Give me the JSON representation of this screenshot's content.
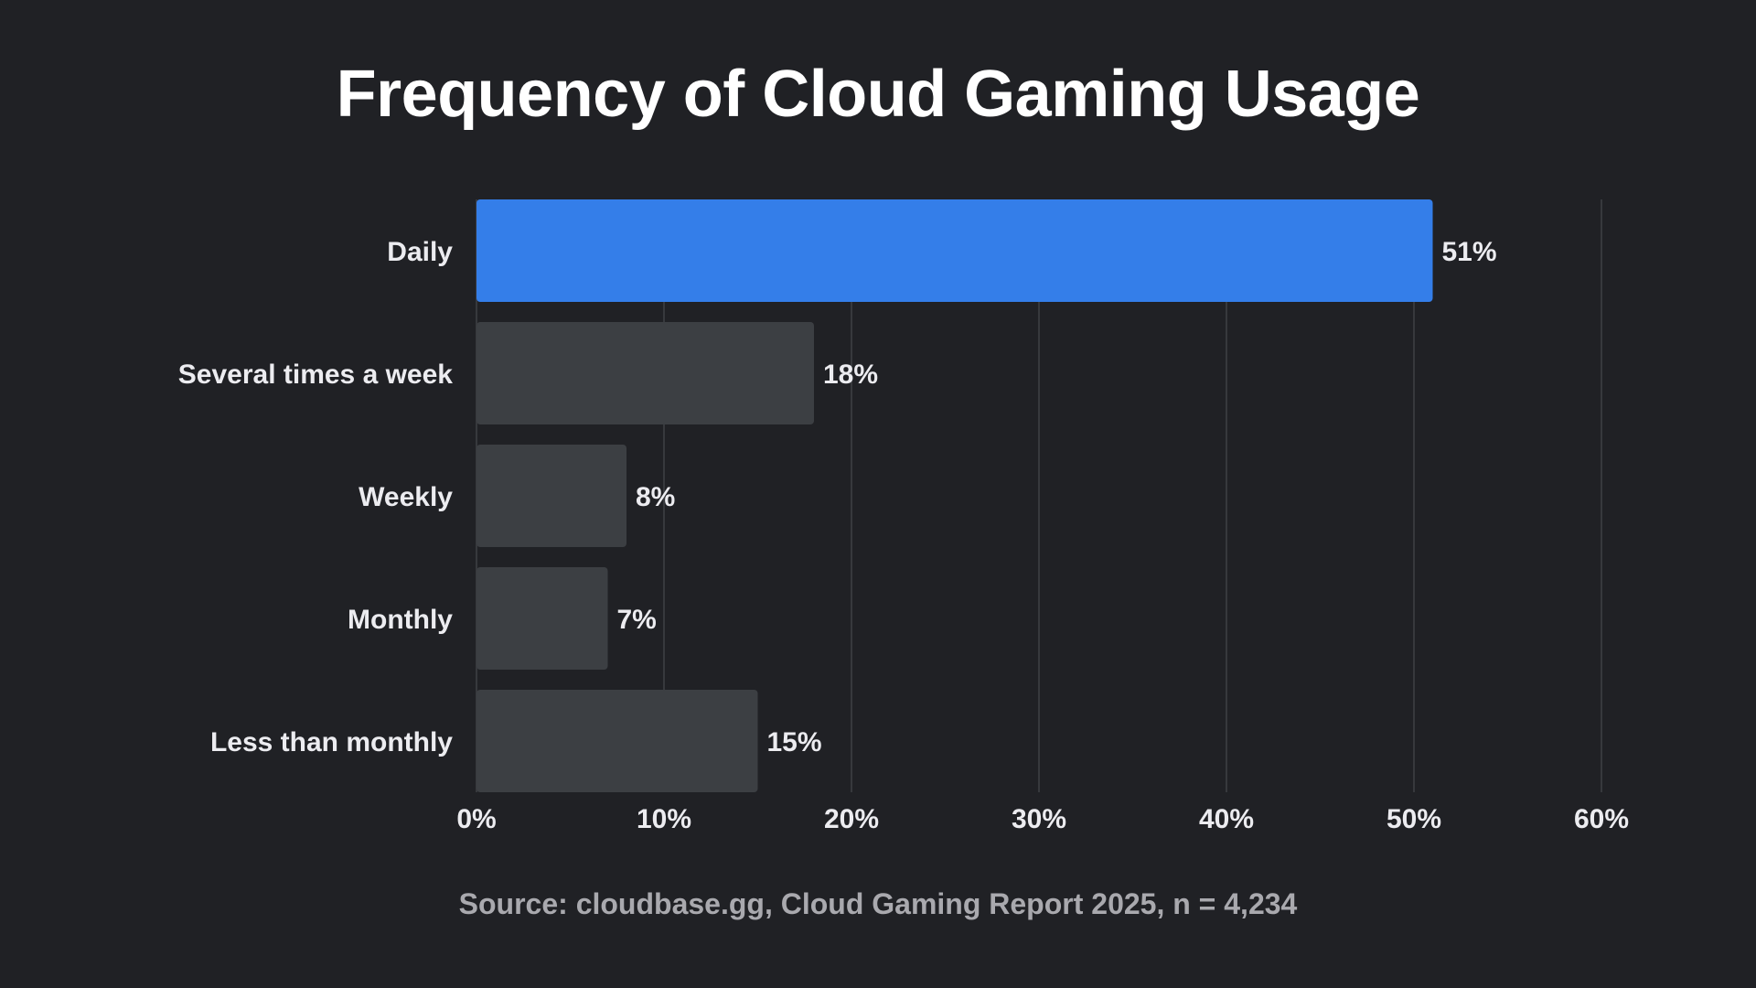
{
  "chart_data": {
    "type": "bar",
    "orientation": "horizontal",
    "title": "Frequency of Cloud Gaming Usage",
    "categories": [
      "Daily",
      "Several times a week",
      "Weekly",
      "Monthly",
      "Less than monthly"
    ],
    "values": [
      51,
      18,
      8,
      7,
      15
    ],
    "value_labels": [
      "51%",
      "18%",
      "8%",
      "7%",
      "15%"
    ],
    "xlim": [
      0,
      60
    ],
    "x_ticks": [
      0,
      10,
      20,
      30,
      40,
      50,
      60
    ],
    "x_tick_labels": [
      "0%",
      "10%",
      "20%",
      "30%",
      "40%",
      "50%",
      "60%"
    ],
    "grid": "vertical",
    "colors": {
      "highlight": "#347ee9",
      "default": "#3c3f43",
      "background": "#202125",
      "grid": "#37393d",
      "text": "#ececf0"
    },
    "highlight_index": 0,
    "source": "Source: cloudbase.gg, Cloud Gaming Report 2025, n = 4,234"
  }
}
